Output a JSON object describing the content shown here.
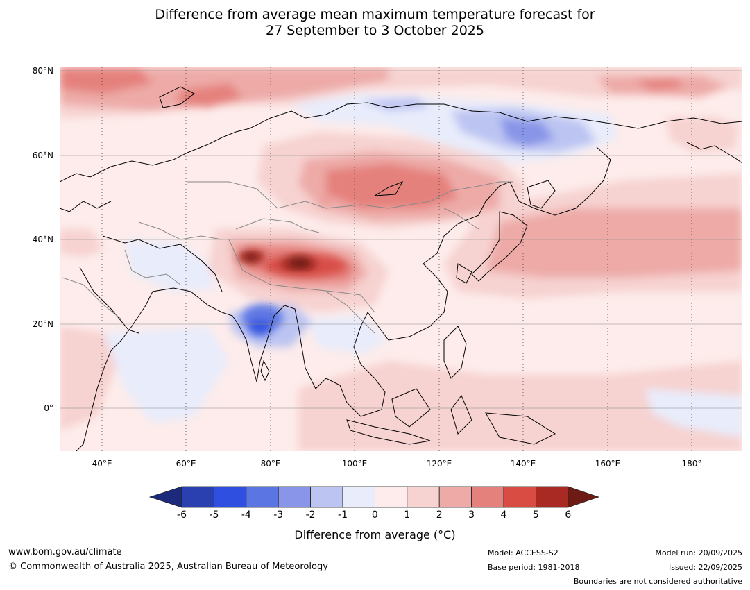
{
  "title": {
    "line1": "Difference from average mean maximum temperature forecast for",
    "line2": "27 September to 3 October 2025"
  },
  "map": {
    "lat_labels": [
      "80°N",
      "60°N",
      "40°N",
      "20°N",
      "0°"
    ],
    "lon_labels": [
      "40°E",
      "60°E",
      "80°E",
      "100°E",
      "120°E",
      "140°E",
      "160°E",
      "180°"
    ],
    "lat_range": [
      -10,
      80
    ],
    "lon_range": [
      30,
      190
    ]
  },
  "colorbar": {
    "ticks": [
      "-6",
      "-5",
      "-4",
      "-3",
      "-2",
      "-1",
      "0",
      "1",
      "2",
      "3",
      "4",
      "5",
      "6"
    ],
    "colors": [
      "#1b2a7a",
      "#2a3fb0",
      "#2f4fe0",
      "#5b76e2",
      "#8895e8",
      "#bcc4f2",
      "#e8ecfb",
      "#fdeceb",
      "#f6d2d0",
      "#edaaa7",
      "#e5817d",
      "#d84c44",
      "#a92a23",
      "#6e1b15"
    ],
    "label": "Difference from average (°C)"
  },
  "footer": {
    "website": "www.bom.gov.au/climate",
    "copyright": "© Commonwealth of Australia 2025, Australian Bureau of Meteorology",
    "model": "Model: ACCESS-S2",
    "base_period": "Base period: 1981-2018",
    "model_run": "Model run: 20/09/2025",
    "issued": "Issued: 22/09/2025",
    "disclaimer": "Boundaries are not considered authoritative"
  }
}
